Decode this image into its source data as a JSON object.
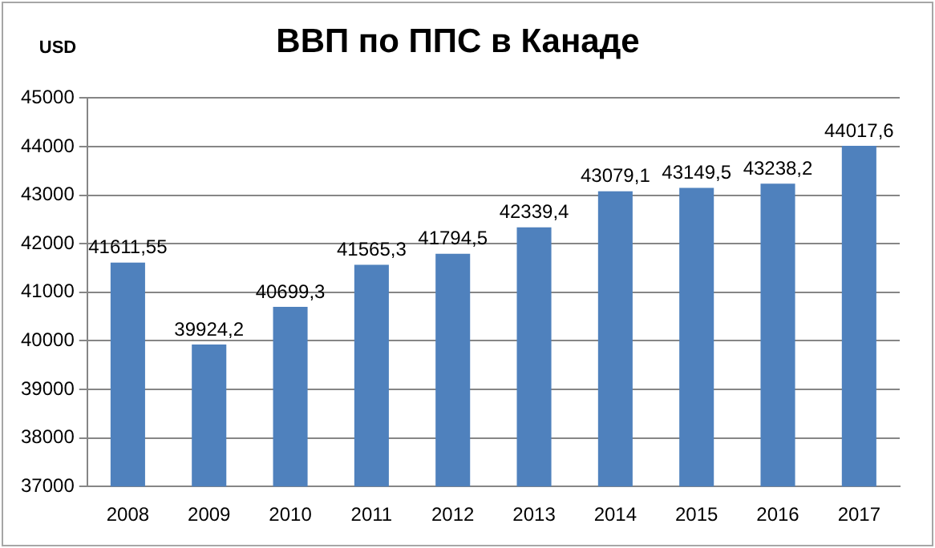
{
  "chart_data": {
    "type": "bar",
    "title": "ВВП по ППС в Канаде",
    "ylabel": "USD",
    "categories": [
      "2008",
      "2009",
      "2010",
      "2011",
      "2012",
      "2013",
      "2014",
      "2015",
      "2016",
      "2017"
    ],
    "values": [
      41611.55,
      39924.2,
      40699.3,
      41565.3,
      41794.5,
      42339.4,
      43079.1,
      43149.5,
      43238.2,
      44017.6
    ],
    "value_labels": [
      "41611,55",
      "39924,2",
      "40699,3",
      "41565,3",
      "41794,5",
      "42339,4",
      "43079,1",
      "43149,5",
      "43238,2",
      "44017,6"
    ],
    "color": "#4f81bd",
    "ylim": [
      37000,
      45000
    ],
    "yticks": [
      37000,
      38000,
      39000,
      40000,
      41000,
      42000,
      43000,
      44000,
      45000
    ],
    "grid": "y",
    "legend": false
  }
}
